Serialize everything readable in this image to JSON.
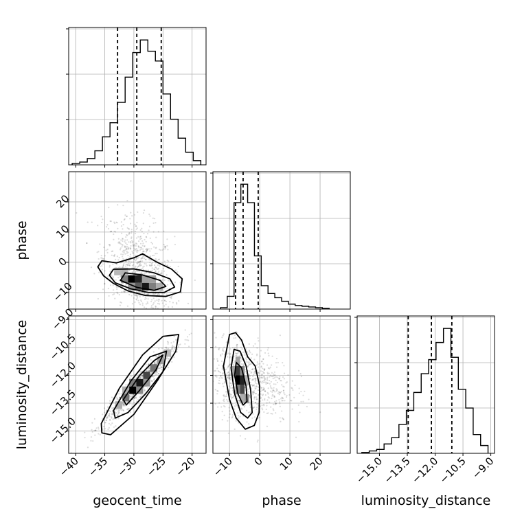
{
  "chart_data": {
    "type": "corner",
    "parameters": [
      "geocent_time",
      "phase",
      "luminosity_distance"
    ],
    "grid": true,
    "axes": {
      "geocent_time": {
        "label": "geocent_time",
        "range": [
          -41.2,
          -17.6
        ],
        "ticks": [
          -40,
          -35,
          -30,
          -25,
          -20
        ],
        "tick_labels": [
          "−40",
          "−35",
          "−30",
          "−25",
          "−20"
        ]
      },
      "phase": {
        "label": "phase",
        "range": [
          -15.5,
          30.0
        ],
        "ticks": [
          -10,
          0,
          10,
          20
        ],
        "tick_labels": [
          "−10",
          "0",
          "10",
          "20"
        ]
      },
      "luminosity_distance": {
        "label": "luminosity_distance",
        "range": [
          -16.2,
          -8.8
        ],
        "ticks": [
          -15.0,
          -13.5,
          -12.0,
          -10.5,
          -9.0
        ],
        "tick_labels": [
          "−15.0",
          "−13.5",
          "−12.0",
          "−10.5",
          "−9.0"
        ]
      }
    },
    "histograms": {
      "geocent_time": {
        "bin_edges": [
          -40.6,
          -39.3,
          -38.0,
          -36.7,
          -35.4,
          -34.1,
          -32.8,
          -31.5,
          -30.2,
          -28.9,
          -27.6,
          -26.3,
          -25.0,
          -23.7,
          -22.4,
          -21.1,
          -19.8,
          -18.5
        ],
        "counts": [
          2,
          4,
          9,
          20,
          40,
          60,
          89,
          125,
          160,
          178,
          162,
          148,
          101,
          65,
          38,
          18,
          6
        ],
        "quantiles": [
          -32.8,
          -29.5,
          -25.3
        ]
      },
      "phase": {
        "bin_edges": [
          -13.0,
          -10.75,
          -8.5,
          -6.25,
          -4.0,
          -1.75,
          0.5,
          2.75,
          5.0,
          7.25,
          9.5,
          11.75,
          14.0,
          16.25,
          18.5,
          20.75,
          23.0
        ],
        "counts": [
          2,
          18,
          150,
          176,
          150,
          75,
          33,
          22,
          16,
          11,
          7,
          5,
          4,
          3,
          2,
          1
        ],
        "quantiles": [
          -8.0,
          -5.5,
          -0.5
        ]
      },
      "luminosity_distance": {
        "bin_edges": [
          -15.95,
          -15.55,
          -15.15,
          -14.75,
          -14.35,
          -13.95,
          -13.55,
          -13.15,
          -12.75,
          -12.35,
          -11.95,
          -11.55,
          -11.15,
          -10.75,
          -10.35,
          -9.95,
          -9.55,
          -9.15
        ],
        "counts": [
          1,
          3,
          5,
          12,
          20,
          37,
          55,
          78,
          102,
          120,
          142,
          160,
          123,
          82,
          58,
          24,
          10
        ],
        "quantiles": [
          -13.45,
          -12.2,
          -11.1
        ]
      }
    },
    "pairs": [
      {
        "x": "geocent_time",
        "y": "phase",
        "density_cells": [
          {
            "x": [
              -31.0,
              -29.8
            ],
            "y": [
              -6.8,
              -4.3
            ],
            "level": 1.0
          },
          {
            "x": [
              -29.8,
              -28.6
            ],
            "y": [
              -6.8,
              -4.3
            ],
            "level": 0.85
          },
          {
            "x": [
              -28.6,
              -27.4
            ],
            "y": [
              -9.3,
              -6.8
            ],
            "level": 0.9
          },
          {
            "x": [
              -29.8,
              -28.6
            ],
            "y": [
              -9.3,
              -6.8
            ],
            "level": 0.6
          },
          {
            "x": [
              -32.2,
              -31.0
            ],
            "y": [
              -6.8,
              -4.3
            ],
            "level": 0.45
          },
          {
            "x": [
              -27.4,
              -26.2
            ],
            "y": [
              -9.3,
              -6.8
            ],
            "level": 0.45
          },
          {
            "x": [
              -31.0,
              -29.8
            ],
            "y": [
              -9.3,
              -6.8
            ],
            "level": 0.35
          },
          {
            "x": [
              -27.4,
              -26.2
            ],
            "y": [
              -6.8,
              -4.3
            ],
            "level": 0.3
          },
          {
            "x": [
              -26.2,
              -25.0
            ],
            "y": [
              -9.3,
              -6.8
            ],
            "level": 0.25
          },
          {
            "x": [
              -28.6,
              -27.4
            ],
            "y": [
              -6.8,
              -4.3
            ],
            "level": 0.3
          },
          {
            "x": [
              -33.4,
              -32.2
            ],
            "y": [
              -4.3,
              -1.8
            ],
            "level": 0.2
          },
          {
            "x": [
              -32.2,
              -31.0
            ],
            "y": [
              -4.3,
              -1.8
            ],
            "level": 0.22
          }
        ],
        "contours": [
          [
            [
              -31.5,
              -3.5
            ],
            [
              -28.5,
              -4.2
            ],
            [
              -25.5,
              -6.0
            ],
            [
              -24.5,
              -8.0
            ],
            [
              -26.5,
              -9.3
            ],
            [
              -29.5,
              -8.3
            ],
            [
              -32.3,
              -6.0
            ]
          ],
          [
            [
              -33.5,
              -2.3
            ],
            [
              -30.0,
              -2.2
            ],
            [
              -26.5,
              -3.5
            ],
            [
              -23.8,
              -5.5
            ],
            [
              -23.0,
              -8.2
            ],
            [
              -24.8,
              -10.0
            ],
            [
              -27.5,
              -10.0
            ],
            [
              -30.5,
              -8.8
            ],
            [
              -33.2,
              -6.8
            ],
            [
              -34.2,
              -4.3
            ]
          ],
          [
            [
              -35.5,
              0.5
            ],
            [
              -33.0,
              -0.2
            ],
            [
              -30.0,
              1.5
            ],
            [
              -28.5,
              2.8
            ],
            [
              -26.0,
              0.0
            ],
            [
              -23.5,
              -2.3
            ],
            [
              -21.7,
              -5.5
            ],
            [
              -22.0,
              -9.8
            ],
            [
              -24.5,
              -11.3
            ],
            [
              -28.0,
              -11.0
            ],
            [
              -31.0,
              -9.5
            ],
            [
              -33.5,
              -7.0
            ],
            [
              -35.2,
              -4.5
            ],
            [
              -36.2,
              -1.5
            ]
          ]
        ]
      },
      {
        "x": "geocent_time",
        "y": "luminosity_distance",
        "density_cells": [
          {
            "x": [
              -30.8,
              -29.6
            ],
            "y": [
              -13.0,
              -12.6
            ],
            "level": 1.0
          },
          {
            "x": [
              -29.6,
              -28.4
            ],
            "y": [
              -12.6,
              -12.2
            ],
            "level": 0.9
          },
          {
            "x": [
              -28.4,
              -27.2
            ],
            "y": [
              -12.2,
              -11.8
            ],
            "level": 0.7
          },
          {
            "x": [
              -32.0,
              -30.8
            ],
            "y": [
              -13.4,
              -13.0
            ],
            "level": 0.5
          },
          {
            "x": [
              -27.2,
              -26.0
            ],
            "y": [
              -11.8,
              -11.4
            ],
            "level": 0.5
          },
          {
            "x": [
              -33.2,
              -32.0
            ],
            "y": [
              -13.8,
              -13.4
            ],
            "level": 0.25
          },
          {
            "x": [
              -26.0,
              -24.8
            ],
            "y": [
              -11.4,
              -11.0
            ],
            "level": 0.3
          },
          {
            "x": [
              -30.8,
              -29.6
            ],
            "y": [
              -12.6,
              -12.2
            ],
            "level": 0.45
          },
          {
            "x": [
              -29.6,
              -28.4
            ],
            "y": [
              -13.0,
              -12.6
            ],
            "level": 0.4
          },
          {
            "x": [
              -28.4,
              -27.2
            ],
            "y": [
              -12.6,
              -12.2
            ],
            "level": 0.35
          },
          {
            "x": [
              -24.8,
              -23.6
            ],
            "y": [
              -11.0,
              -10.6
            ],
            "level": 0.2
          },
          {
            "x": [
              -32.0,
              -30.8
            ],
            "y": [
              -13.0,
              -12.6
            ],
            "level": 0.25
          }
        ],
        "contours": [
          [
            [
              -31.8,
              -13.3
            ],
            [
              -29.0,
              -12.0
            ],
            [
              -26.5,
              -11.2
            ],
            [
              -25.0,
              -10.9
            ],
            [
              -26.2,
              -11.7
            ],
            [
              -29.0,
              -12.8
            ],
            [
              -31.3,
              -13.6
            ]
          ],
          [
            [
              -33.5,
              -13.9
            ],
            [
              -30.5,
              -12.3
            ],
            [
              -27.2,
              -11.0
            ],
            [
              -24.4,
              -10.7
            ],
            [
              -25.0,
              -11.8
            ],
            [
              -28.0,
              -13.0
            ],
            [
              -31.0,
              -14.0
            ],
            [
              -33.2,
              -14.3
            ]
          ],
          [
            [
              -35.6,
              -14.6
            ],
            [
              -32.5,
              -12.7
            ],
            [
              -28.5,
              -10.9
            ],
            [
              -25.0,
              -9.9
            ],
            [
              -22.3,
              -9.8
            ],
            [
              -22.8,
              -10.7
            ],
            [
              -26.0,
              -12.3
            ],
            [
              -30.0,
              -14.1
            ],
            [
              -34.0,
              -15.2
            ],
            [
              -35.5,
              -15.1
            ]
          ]
        ]
      },
      {
        "x": "phase",
        "y": "luminosity_distance",
        "density_cells": [
          {
            "x": [
              -8.0,
              -6.5
            ],
            "y": [
              -12.5,
              -12.0
            ],
            "level": 1.0
          },
          {
            "x": [
              -6.5,
              -5.0
            ],
            "y": [
              -12.5,
              -12.0
            ],
            "level": 0.85
          },
          {
            "x": [
              -8.0,
              -6.5
            ],
            "y": [
              -12.0,
              -11.5
            ],
            "level": 0.75
          },
          {
            "x": [
              -6.5,
              -5.0
            ],
            "y": [
              -13.0,
              -12.5
            ],
            "level": 0.7
          },
          {
            "x": [
              -8.0,
              -6.5
            ],
            "y": [
              -13.0,
              -12.5
            ],
            "level": 0.45
          },
          {
            "x": [
              -6.5,
              -5.0
            ],
            "y": [
              -12.0,
              -11.5
            ],
            "level": 0.4
          },
          {
            "x": [
              -9.5,
              -8.0
            ],
            "y": [
              -12.0,
              -11.5
            ],
            "level": 0.3
          },
          {
            "x": [
              -5.0,
              -3.5
            ],
            "y": [
              -13.5,
              -13.0
            ],
            "level": 0.35
          },
          {
            "x": [
              -8.0,
              -6.5
            ],
            "y": [
              -11.5,
              -11.0
            ],
            "level": 0.3
          },
          {
            "x": [
              -6.5,
              -5.0
            ],
            "y": [
              -13.5,
              -13.0
            ],
            "level": 0.25
          },
          {
            "x": [
              -5.0,
              -3.5
            ],
            "y": [
              -12.5,
              -12.0
            ],
            "level": 0.2
          }
        ],
        "contours": [
          [
            [
              -7.8,
              -11.3
            ],
            [
              -6.0,
              -11.6
            ],
            [
              -4.5,
              -12.6
            ],
            [
              -4.2,
              -13.4
            ],
            [
              -5.5,
              -13.6
            ],
            [
              -7.2,
              -13.0
            ],
            [
              -8.3,
              -12.0
            ]
          ],
          [
            [
              -8.5,
              -10.6
            ],
            [
              -6.5,
              -10.7
            ],
            [
              -4.5,
              -11.5
            ],
            [
              -3.0,
              -12.8
            ],
            [
              -2.5,
              -14.0
            ],
            [
              -4.0,
              -14.3
            ],
            [
              -6.3,
              -14.0
            ],
            [
              -8.3,
              -13.0
            ],
            [
              -9.5,
              -11.6
            ]
          ],
          [
            [
              -10.0,
              -9.8
            ],
            [
              -8.0,
              -9.7
            ],
            [
              -6.0,
              -10.1
            ],
            [
              -4.0,
              -11.0
            ],
            [
              -1.5,
              -11.5
            ],
            [
              0.0,
              -12.6
            ],
            [
              -0.2,
              -14.0
            ],
            [
              -1.8,
              -14.7
            ],
            [
              -4.8,
              -14.9
            ],
            [
              -7.8,
              -14.3
            ],
            [
              -10.0,
              -13.3
            ],
            [
              -12.0,
              -11.5
            ]
          ]
        ]
      }
    ]
  }
}
